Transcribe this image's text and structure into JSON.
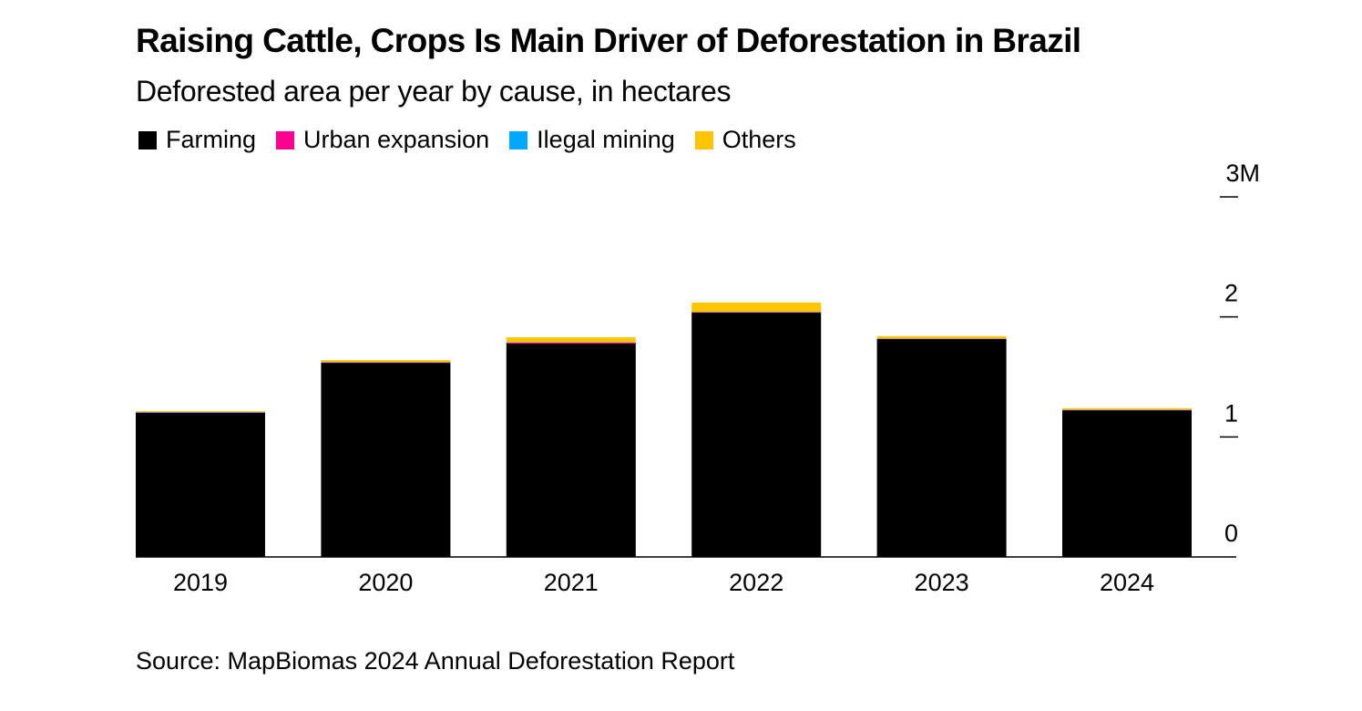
{
  "title": "Raising Cattle, Crops Is Main Driver of Deforestation in Brazil",
  "subtitle": "Deforested area per year by cause, in hectares",
  "source": "Source: MapBiomas 2024 Annual Deforestation Report",
  "legend": [
    {
      "label": "Farming",
      "color": "#000000"
    },
    {
      "label": "Urban expansion",
      "color": "#ff0090"
    },
    {
      "label": "Ilegal mining",
      "color": "#00a9ff"
    },
    {
      "label": "Others",
      "color": "#ffc600"
    }
  ],
  "chart_data": {
    "type": "bar",
    "stacked": true,
    "title": "Raising Cattle, Crops Is Main Driver of Deforestation in Brazil",
    "subtitle": "Deforested area per year by cause, in hectares",
    "xlabel": "",
    "ylabel": "",
    "categories": [
      "2019",
      "2020",
      "2021",
      "2022",
      "2023",
      "2024"
    ],
    "series": [
      {
        "name": "Farming",
        "color": "#000000",
        "values": [
          1200000,
          1617000,
          1777000,
          2035000,
          1815000,
          1222000
        ]
      },
      {
        "name": "Urban expansion",
        "color": "#ff0090",
        "values": [
          3000,
          4000,
          8000,
          4000,
          3000,
          3000
        ]
      },
      {
        "name": "Ilegal mining",
        "color": "#00a9ff",
        "values": [
          4000,
          3000,
          3000,
          3000,
          3000,
          3000
        ]
      },
      {
        "name": "Others",
        "color": "#ffc600",
        "values": [
          8000,
          16000,
          42000,
          78000,
          19000,
          12000
        ]
      }
    ],
    "ylim": [
      0,
      3000000
    ],
    "yticks": [
      0,
      1000000,
      2000000,
      3000000
    ],
    "ytick_labels": [
      "0",
      "1",
      "2",
      "3M"
    ],
    "y_axis_side": "right",
    "grid": false,
    "legend_position": "top-left",
    "source": "Source: MapBiomas 2024 Annual Deforestation Report"
  }
}
